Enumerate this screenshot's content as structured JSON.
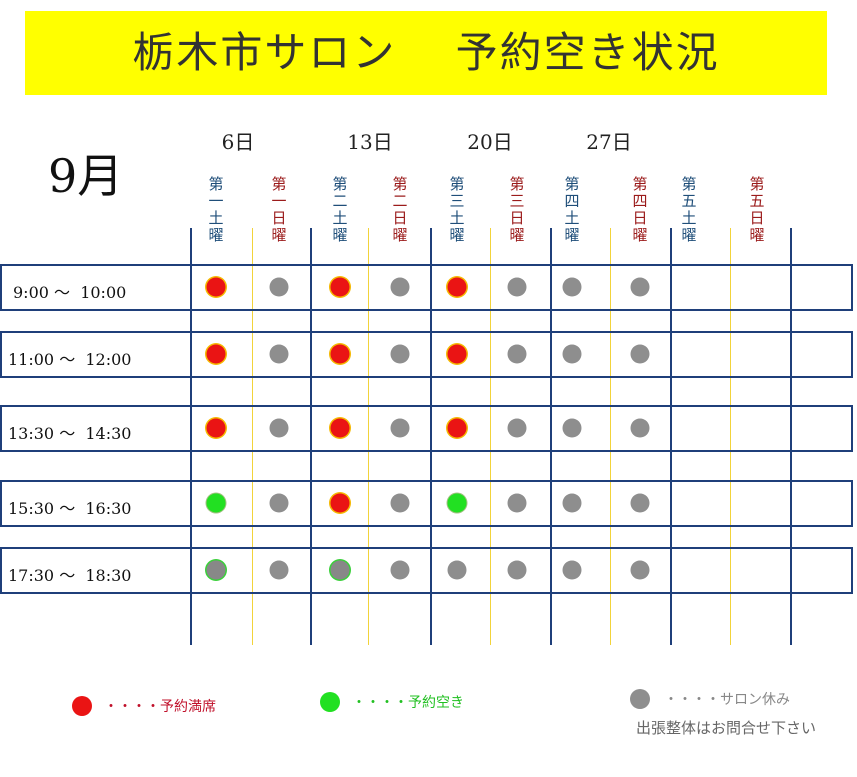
{
  "title": "栃木市サロン　 予約空き状況",
  "month": "9月",
  "dates": [
    "6日",
    "13日",
    "20日",
    "27日"
  ],
  "columns": [
    {
      "label": "第一土曜",
      "kind": "sat"
    },
    {
      "label": "第一日曜",
      "kind": "sun"
    },
    {
      "label": "第二土曜",
      "kind": "sat"
    },
    {
      "label": "第二日曜",
      "kind": "sun"
    },
    {
      "label": "第三土曜",
      "kind": "sat"
    },
    {
      "label": "第三日曜",
      "kind": "sun"
    },
    {
      "label": "第四土曜",
      "kind": "sat"
    },
    {
      "label": "第四日曜",
      "kind": "sun"
    },
    {
      "label": "第五土曜",
      "kind": "sat"
    },
    {
      "label": "第五日曜",
      "kind": "sun"
    }
  ],
  "colors": {
    "sat_header": "#1f4e79",
    "sun_header": "#9b1b1b",
    "full": "#ea1414",
    "open": "#22e022",
    "closed": "#8e8e8e",
    "banner": "#ffff00"
  },
  "rows": [
    {
      "time": "9:00 ～  10:00",
      "slots": [
        "full",
        "closed",
        "full",
        "closed",
        "full",
        "closed",
        "closed",
        "closed"
      ]
    },
    {
      "time": "11:00 ～  12:00",
      "slots": [
        "full",
        "closed",
        "full",
        "closed",
        "full",
        "closed",
        "closed",
        "closed"
      ]
    },
    {
      "time": "13:30 ～  14:30",
      "slots": [
        "full",
        "closed",
        "full",
        "closed",
        "full",
        "closed",
        "closed",
        "closed"
      ]
    },
    {
      "time": "15:30 ～  16:30",
      "slots": [
        "open",
        "closed",
        "full",
        "closed",
        "open",
        "closed",
        "closed",
        "closed"
      ]
    },
    {
      "time": "17:30 ～  18:30",
      "slots": [
        "open-grey",
        "closed",
        "open-grey",
        "closed",
        "closed",
        "closed",
        "closed",
        "closed"
      ]
    }
  ],
  "legend": {
    "full": "・・・・予約満席",
    "open": "・・・・予約空き",
    "closed": "・・・・サロン休み",
    "note": "出張整体はお問合せ下さい"
  }
}
